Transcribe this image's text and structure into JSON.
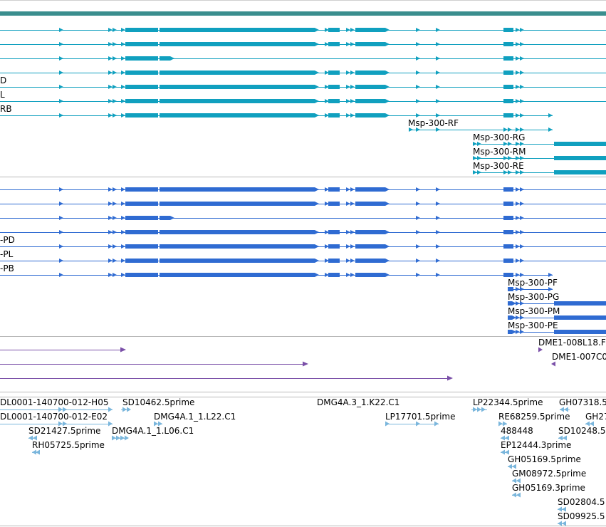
{
  "colors": {
    "top_bar": "#3a8e8e",
    "divider": "#b9b9b9",
    "track1": "#10a0bf",
    "track2": "#2f6bd2",
    "track3": "#7a4fa8",
    "track4": "#7ab6dc"
  },
  "track1": {
    "partial_labels": [
      "D",
      "L",
      "RB"
    ],
    "labels": [
      "Msp-300-RF",
      "Msp-300-RG",
      "Msp-300-RM",
      "Msp-300-RE"
    ]
  },
  "track2": {
    "partial_labels": [
      "-PD",
      "-PL",
      "-PB"
    ],
    "labels": [
      "Msp-300-PF",
      "Msp-300-PG",
      "Msp-300-PM",
      "Msp-300-PE"
    ]
  },
  "track3": {
    "labels": [
      "DME1-008L18.F",
      "DME1-007C0"
    ]
  },
  "track4": {
    "labels": [
      "DL0001-140700-012-H05",
      "SD10462.5prime",
      "DMG4A.3_1.K22.C1",
      "LP22344.5prime",
      "GH07318.5",
      "DL0001-140700-012-E02",
      "DMG4A.1_1.L22.C1",
      "LP17701.5prime",
      "RE68259.5prime",
      "GH27",
      "SD21427.5prime",
      "DMG4A.1_1.L06.C1",
      "488448",
      "SD10248.5",
      "RH05725.5prime",
      "EP12444.3prime",
      "GH05169.5prime",
      "GM08972.5prime",
      "GH05169.3prime",
      "SD02804.5",
      "SD09925.5"
    ]
  }
}
